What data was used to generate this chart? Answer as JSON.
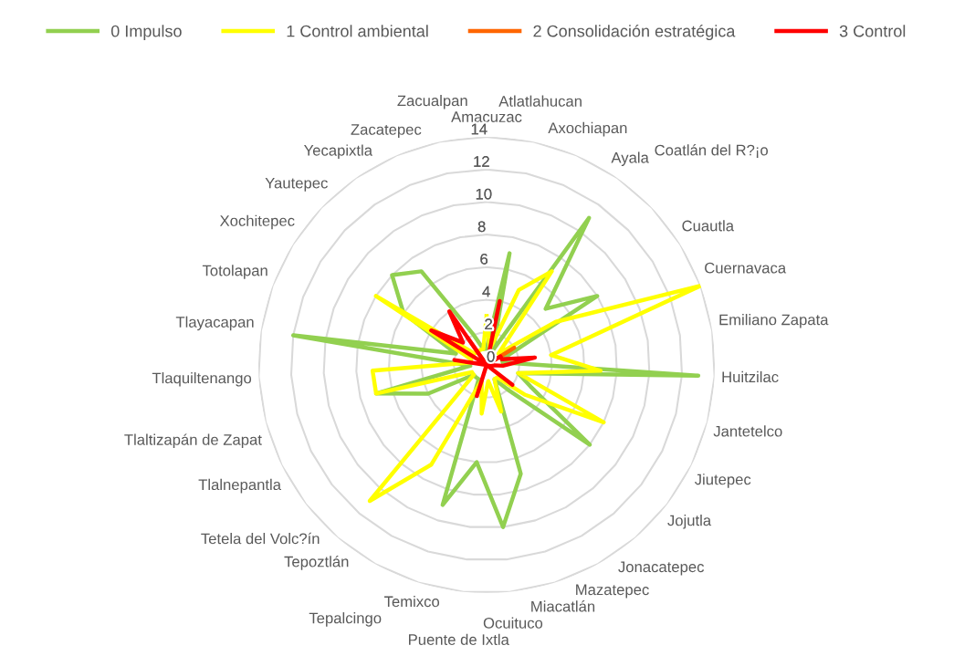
{
  "chart_data": {
    "type": "radar",
    "categories": [
      "Amacuzac",
      "Atlatlahucan",
      "Axochiapan",
      "Ayala",
      "Coatlán del R?¡o",
      "Cuautla",
      "Cuernavaca",
      "Emiliano Zapata",
      "Huitzilac",
      "Jantetelco",
      "Jiutepec",
      "Jojutla",
      "Jonacatepec",
      "Mazatepec",
      "Miacatlán",
      "Ocuituco",
      "Puente de Ixtla",
      "Temixco",
      "Tepalcingo",
      "Tepoztlán",
      "Tetela del Volc?ín",
      "Tlalnepantla",
      "Tlaltizapán de Zapat",
      "Tlaquiltenango",
      "Tlayacapan",
      "Totolapan",
      "Xochitepec",
      "Yautepec",
      "Yecapixtla",
      "Zacatepec",
      "Zacualpan"
    ],
    "series": [
      {
        "name": "0 Impulso",
        "color": "#92d050",
        "values": [
          1,
          7,
          1,
          11,
          5,
          8,
          1,
          1,
          13,
          2,
          3,
          8,
          2,
          1,
          7,
          10,
          6,
          9,
          1,
          1,
          1,
          4,
          7,
          1,
          12,
          2,
          6,
          8,
          7,
          2,
          1
        ]
      },
      {
        "name": "1 Control ambiental",
        "color": "#ffff00",
        "values": [
          3,
          1,
          5,
          7,
          1,
          5,
          14,
          4,
          7,
          2,
          8,
          3,
          1,
          1,
          3,
          1,
          3,
          1,
          7,
          11,
          1,
          1,
          7,
          7,
          1,
          1,
          8,
          1,
          1,
          1,
          1
        ]
      },
      {
        "name": "2 Consolidación estratégica",
        "color": "#ff6600",
        "values": [
          0,
          0,
          0,
          0,
          0,
          2,
          0,
          0,
          0,
          0,
          0,
          0,
          0,
          0,
          0,
          0,
          0,
          0,
          0,
          0,
          0,
          0,
          0,
          0,
          0,
          0,
          0,
          0,
          2,
          0,
          0
        ]
      },
      {
        "name": "3 Control",
        "color": "#ff0000",
        "values": [
          0,
          4,
          0,
          0,
          0,
          1,
          1,
          3,
          1,
          0,
          0,
          2,
          0,
          0,
          0,
          0,
          0,
          2,
          0,
          0,
          0,
          0,
          0,
          0,
          2,
          0,
          4,
          2,
          4,
          0,
          0
        ]
      }
    ],
    "ylim": [
      0,
      14
    ],
    "yticks": [
      0,
      2,
      4,
      6,
      8,
      10,
      12,
      14
    ],
    "grid": true,
    "legend": "top",
    "marker": "none",
    "line_style": "solid"
  }
}
